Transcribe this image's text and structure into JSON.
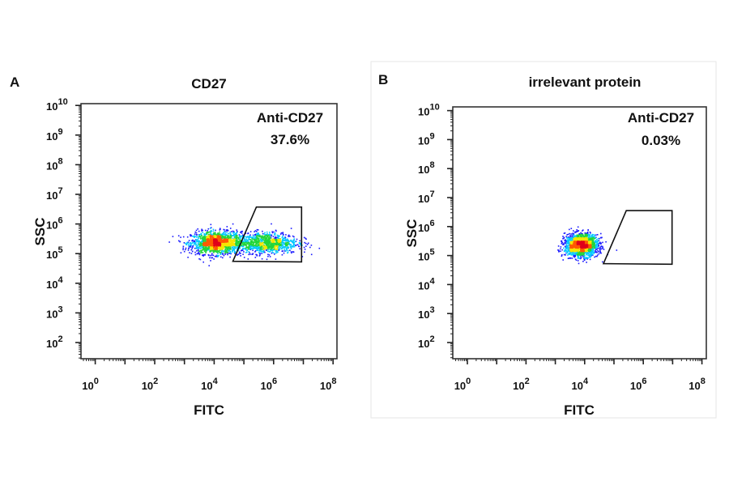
{
  "chart_data": [
    {
      "type": "scatter",
      "panel_letter": "A",
      "title": "CD27",
      "xlabel": "FITC",
      "ylabel": "SSC",
      "x_scale": "log",
      "y_scale": "log",
      "xlim": [
        0.3,
        100000000.0
      ],
      "ylim": [
        10.0,
        10000000000.0
      ],
      "x_tick_labels": [
        {
          "base": "10",
          "exp": "0",
          "value": 1
        },
        {
          "base": "10",
          "exp": "2",
          "value": 100
        },
        {
          "base": "10",
          "exp": "4",
          "value": 10000
        },
        {
          "base": "10",
          "exp": "6",
          "value": 1000000
        },
        {
          "base": "10",
          "exp": "8",
          "value": 100000000
        }
      ],
      "y_tick_labels": [
        {
          "base": "10",
          "exp": "2",
          "value": 100.0
        },
        {
          "base": "10",
          "exp": "3",
          "value": 1000.0
        },
        {
          "base": "10",
          "exp": "4",
          "value": 10000.0
        },
        {
          "base": "10",
          "exp": "5",
          "value": 100000.0
        },
        {
          "base": "10",
          "exp": "6",
          "value": 1000000.0
        },
        {
          "base": "10",
          "exp": "7",
          "value": 10000000.0
        },
        {
          "base": "10",
          "exp": "8",
          "value": 100000000.0
        },
        {
          "base": "10",
          "exp": "9",
          "value": 1000000000.0
        },
        {
          "base": "10",
          "exp": "10",
          "value": 10000000000.0
        }
      ],
      "gate": {
        "name": "Anti-CD27",
        "percent": "37.6%",
        "vertices_log10": [
          [
            4.63,
            4.74
          ],
          [
            5.42,
            6.57
          ],
          [
            6.94,
            6.57
          ],
          [
            6.94,
            4.72
          ]
        ]
      },
      "populations_log10": [
        {
          "x_center": 4.05,
          "y_center": 5.38,
          "x_sd": 0.42,
          "y_sd": 0.19,
          "weight": 0.6
        },
        {
          "x_center": 5.7,
          "y_center": 5.38,
          "x_sd": 0.55,
          "y_sd": 0.18,
          "weight": 0.4
        }
      ],
      "grid": false,
      "density_colors": [
        "#1a1aff",
        "#00c8ff",
        "#22d63a",
        "#f5e600",
        "#ff5a00",
        "#e0001a"
      ]
    },
    {
      "type": "scatter",
      "panel_letter": "B",
      "title": "irrelevant protein",
      "xlabel": "FITC",
      "ylabel": "SSC",
      "x_scale": "log",
      "y_scale": "log",
      "xlim": [
        0.3,
        100000000.0
      ],
      "ylim": [
        10.0,
        10000000000.0
      ],
      "x_tick_labels": [
        {
          "base": "10",
          "exp": "0",
          "value": 1
        },
        {
          "base": "10",
          "exp": "2",
          "value": 100
        },
        {
          "base": "10",
          "exp": "4",
          "value": 10000
        },
        {
          "base": "10",
          "exp": "6",
          "value": 1000000
        },
        {
          "base": "10",
          "exp": "8",
          "value": 100000000
        }
      ],
      "y_tick_labels": [
        {
          "base": "10",
          "exp": "2",
          "value": 100.0
        },
        {
          "base": "10",
          "exp": "3",
          "value": 1000.0
        },
        {
          "base": "10",
          "exp": "4",
          "value": 10000.0
        },
        {
          "base": "10",
          "exp": "5",
          "value": 100000.0
        },
        {
          "base": "10",
          "exp": "6",
          "value": 1000000.0
        },
        {
          "base": "10",
          "exp": "7",
          "value": 10000000.0
        },
        {
          "base": "10",
          "exp": "8",
          "value": 100000000.0
        },
        {
          "base": "10",
          "exp": "9",
          "value": 1000000000.0
        },
        {
          "base": "10",
          "exp": "10",
          "value": 10000000000.0
        }
      ],
      "gate": {
        "name": "Anti-CD27",
        "percent": "0.03%",
        "vertices_log10": [
          [
            4.64,
            4.72
          ],
          [
            5.42,
            6.55
          ],
          [
            6.98,
            6.55
          ],
          [
            6.98,
            4.7
          ]
        ]
      },
      "populations_log10": [
        {
          "x_center": 3.87,
          "y_center": 5.38,
          "x_sd": 0.28,
          "y_sd": 0.19,
          "weight": 1.0
        }
      ],
      "grid": false,
      "density_colors": [
        "#1a1aff",
        "#00c8ff",
        "#22d63a",
        "#f5e600",
        "#ff5a00",
        "#e0001a"
      ]
    }
  ]
}
